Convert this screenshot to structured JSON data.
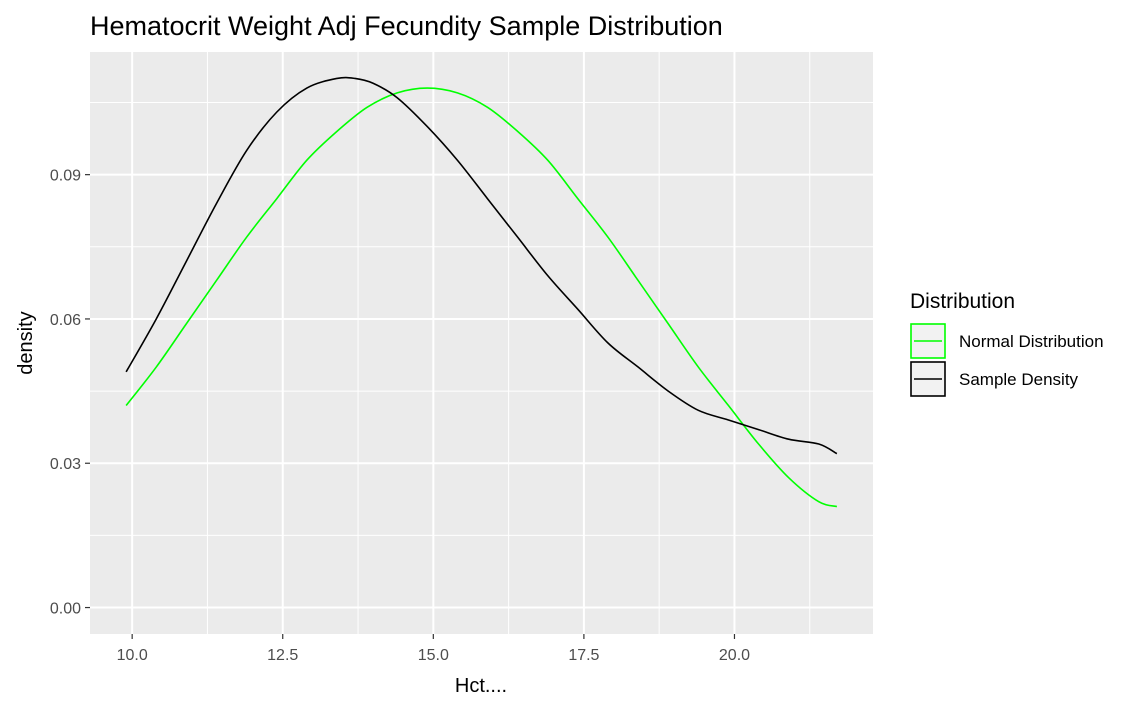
{
  "chart_data": {
    "type": "line",
    "title": "Hematocrit Weight Adj Fecundity Sample Distribution",
    "xlabel": "Hct....",
    "ylabel": "density",
    "xlim": [
      9.3,
      22.3
    ],
    "ylim": [
      -0.0055,
      0.1155
    ],
    "x_ticks": [
      {
        "value": 10,
        "label": "10.0"
      },
      {
        "value": 12.5,
        "label": "12.5"
      },
      {
        "value": 15,
        "label": "15.0"
      },
      {
        "value": 17.5,
        "label": "17.5"
      },
      {
        "value": 20,
        "label": "20.0"
      }
    ],
    "y_ticks": [
      {
        "value": 0,
        "label": "0.00"
      },
      {
        "value": 0.03,
        "label": "0.03"
      },
      {
        "value": 0.06,
        "label": "0.06"
      },
      {
        "value": 0.09,
        "label": "0.09"
      }
    ],
    "grid": true,
    "panel_background": "#ebebeb",
    "legend": {
      "title": "Distribution",
      "position": "right",
      "entries": [
        {
          "label": "Normal Distribution",
          "color": "#00ff00"
        },
        {
          "label": "Sample Density",
          "color": "#000000"
        }
      ]
    },
    "series": [
      {
        "name": "Normal Distribution",
        "color": "#00ff00",
        "x": [
          9.9,
          10.4,
          10.9,
          11.4,
          11.9,
          12.4,
          12.9,
          13.4,
          13.9,
          14.4,
          14.9,
          15.4,
          15.9,
          16.4,
          16.9,
          17.4,
          17.9,
          18.4,
          18.9,
          19.4,
          19.9,
          20.4,
          20.9,
          21.4,
          21.7
        ],
        "y": [
          0.042,
          0.05,
          0.059,
          0.068,
          0.077,
          0.085,
          0.093,
          0.099,
          0.104,
          0.107,
          0.108,
          0.107,
          0.104,
          0.099,
          0.093,
          0.085,
          0.077,
          0.068,
          0.059,
          0.05,
          0.042,
          0.034,
          0.027,
          0.022,
          0.021
        ]
      },
      {
        "name": "Sample Density",
        "color": "#000000",
        "x": [
          9.9,
          10.4,
          10.9,
          11.4,
          11.9,
          12.4,
          12.9,
          13.4,
          13.7,
          14.0,
          14.4,
          14.9,
          15.4,
          15.9,
          16.4,
          16.9,
          17.4,
          17.9,
          18.4,
          18.9,
          19.4,
          19.9,
          20.4,
          20.9,
          21.4,
          21.7
        ],
        "y": [
          0.049,
          0.06,
          0.072,
          0.084,
          0.095,
          0.103,
          0.108,
          0.11,
          0.11,
          0.109,
          0.106,
          0.1,
          0.093,
          0.085,
          0.077,
          0.069,
          0.062,
          0.055,
          0.05,
          0.045,
          0.041,
          0.039,
          0.037,
          0.035,
          0.034,
          0.032
        ]
      }
    ]
  }
}
